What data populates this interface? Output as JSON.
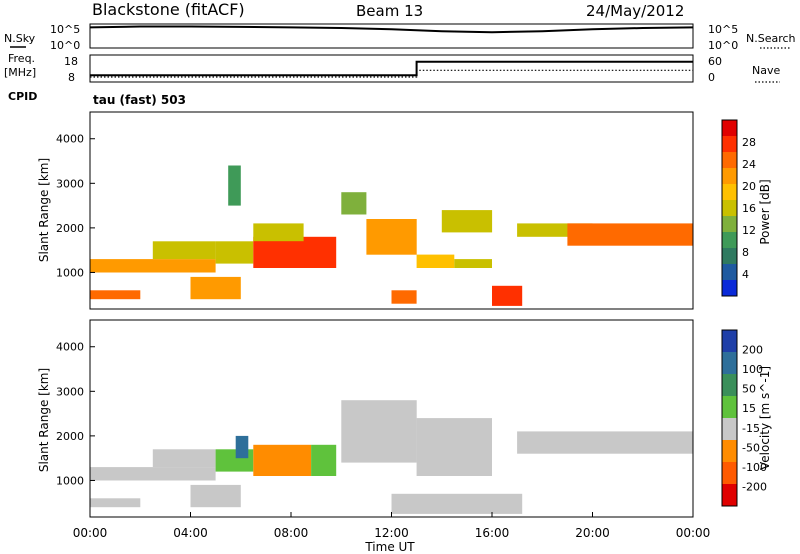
{
  "header": {
    "station": "Blackstone (fitACF)",
    "beam": "Beam 13",
    "date": "24/May/2012"
  },
  "top_panels": {
    "nsky_label": "N.Sky",
    "nsky_ticks": [
      "10^5",
      "10^0"
    ],
    "nsearch_label": "N.Search",
    "nsearch_ticks": [
      "10^5",
      "10^0"
    ],
    "freq_label": "Freq.",
    "freq_unit": "[MHz]",
    "freq_ticks": [
      "18",
      "8"
    ],
    "nave_label": "Nave",
    "nave_ticks": [
      "60",
      "0"
    ],
    "cpid_label": "CPID",
    "cpid_value": "tau (fast) 503"
  },
  "colorbars": {
    "power": {
      "label": "Power [dB]",
      "ticks": [
        "28",
        "24",
        "20",
        "16",
        "12",
        "8",
        "4"
      ],
      "colors": [
        "#e00000",
        "#ff3000",
        "#ff6a00",
        "#ff9a00",
        "#ffc000",
        "#c9c000",
        "#7fb03c",
        "#3f9a58",
        "#2f7a60",
        "#1f5aa0",
        "#0a2ad8"
      ]
    },
    "velocity": {
      "label": "Velocity [m s^-1]",
      "ticks": [
        "200",
        "100",
        "50",
        "15",
        "-15",
        "-50",
        "-100",
        "-200"
      ],
      "colors": [
        "#1f3fa8",
        "#2e6f9a",
        "#3a8f5a",
        "#5fc23c",
        "#c8c8c8",
        "#ff8c00",
        "#ff5a00",
        "#e00000"
      ]
    }
  },
  "axes": {
    "ylabel": "Slant Range [km]",
    "yticks": [
      "4000",
      "3000",
      "2000",
      "1000"
    ],
    "xlabel": "Time UT",
    "xticks": [
      "00:00",
      "04:00",
      "08:00",
      "12:00",
      "16:00",
      "20:00",
      "00:00"
    ]
  },
  "chart_data": [
    {
      "type": "line",
      "title": "N.Sky / N.Search",
      "x": [
        0,
        2,
        4,
        6,
        8,
        10,
        12,
        14,
        16,
        18,
        20,
        22,
        24
      ],
      "series": [
        {
          "name": "N.Sky",
          "values": [
            20000,
            30000,
            30000,
            25000,
            20000,
            15000,
            8000,
            3000,
            2000,
            3000,
            8000,
            15000,
            20000
          ]
        }
      ]
    },
    {
      "type": "line",
      "title": "Freq. / Nave",
      "x": [
        0,
        13,
        13,
        24
      ],
      "series": [
        {
          "name": "Freq.",
          "values": [
            10.5,
            10.5,
            15.5,
            15.5
          ]
        },
        {
          "name": "Nave",
          "values": [
            11,
            11,
            26,
            26
          ]
        }
      ]
    },
    {
      "type": "heatmap",
      "title": "Power [dB]",
      "xlabel": "Time UT",
      "ylabel": "Slant Range [km]",
      "xlim": [
        0,
        24
      ],
      "ylim": [
        180,
        4600
      ],
      "colorbar": "Power [dB]",
      "clim": [
        0,
        30
      ],
      "regions": [
        {
          "x": [
            0,
            5
          ],
          "y": [
            1000,
            1300
          ],
          "value": 22
        },
        {
          "x": [
            2.5,
            5
          ],
          "y": [
            1300,
            1700
          ],
          "value": 16
        },
        {
          "x": [
            5,
            6.5
          ],
          "y": [
            1200,
            1700
          ],
          "value": 14
        },
        {
          "x": [
            6.5,
            9.8
          ],
          "y": [
            1100,
            1800
          ],
          "value": 26
        },
        {
          "x": [
            6.5,
            8.5
          ],
          "y": [
            1700,
            2100
          ],
          "value": 14
        },
        {
          "x": [
            0,
            2
          ],
          "y": [
            400,
            600
          ],
          "value": 24
        },
        {
          "x": [
            4,
            6
          ],
          "y": [
            400,
            900
          ],
          "value": 22
        },
        {
          "x": [
            5.5,
            6
          ],
          "y": [
            2500,
            3400
          ],
          "value": 8
        },
        {
          "x": [
            10,
            11
          ],
          "y": [
            2300,
            2800
          ],
          "value": 12
        },
        {
          "x": [
            11,
            13
          ],
          "y": [
            1400,
            2200
          ],
          "value": 20
        },
        {
          "x": [
            13,
            14.5
          ],
          "y": [
            1100,
            1400
          ],
          "value": 18
        },
        {
          "x": [
            14.5,
            16
          ],
          "y": [
            1100,
            1300
          ],
          "value": 16
        },
        {
          "x": [
            14,
            16
          ],
          "y": [
            1900,
            2400
          ],
          "value": 14
        },
        {
          "x": [
            16,
            17.2
          ],
          "y": [
            250,
            700
          ],
          "value": 26
        },
        {
          "x": [
            12,
            13
          ],
          "y": [
            300,
            600
          ],
          "value": 24
        },
        {
          "x": [
            17,
            20
          ],
          "y": [
            1800,
            2100
          ],
          "value": 16
        },
        {
          "x": [
            19,
            24
          ],
          "y": [
            1600,
            2100
          ],
          "value": 24
        }
      ]
    },
    {
      "type": "heatmap",
      "title": "Velocity [m s^-1]",
      "xlabel": "Time UT",
      "ylabel": "Slant Range [km]",
      "xlim": [
        0,
        24
      ],
      "ylim": [
        180,
        4600
      ],
      "colorbar": "Velocity [m s^-1]",
      "clim": [
        -200,
        200
      ],
      "regions": [
        {
          "x": [
            0,
            5
          ],
          "y": [
            1000,
            1300
          ],
          "value": -5
        },
        {
          "x": [
            2.5,
            5
          ],
          "y": [
            1300,
            1700
          ],
          "value": 0
        },
        {
          "x": [
            5,
            6.5
          ],
          "y": [
            1200,
            1700
          ],
          "value": 5
        },
        {
          "x": [
            6.5,
            8.8
          ],
          "y": [
            1100,
            1800
          ],
          "value": -70
        },
        {
          "x": [
            8.8,
            9.8
          ],
          "y": [
            1100,
            1800
          ],
          "value": 40
        },
        {
          "x": [
            5.8,
            6.3
          ],
          "y": [
            1500,
            2000
          ],
          "value": 150
        },
        {
          "x": [
            0,
            2
          ],
          "y": [
            400,
            600
          ],
          "value": 0
        },
        {
          "x": [
            4,
            6
          ],
          "y": [
            400,
            900
          ],
          "value": 0
        },
        {
          "x": [
            10,
            13
          ],
          "y": [
            1400,
            2800
          ],
          "value": 0
        },
        {
          "x": [
            13,
            16
          ],
          "y": [
            1100,
            2400
          ],
          "value": 0
        },
        {
          "x": [
            12,
            17.2
          ],
          "y": [
            250,
            700
          ],
          "value": 0
        },
        {
          "x": [
            17,
            24
          ],
          "y": [
            1600,
            2100
          ],
          "value": -10
        }
      ]
    }
  ]
}
